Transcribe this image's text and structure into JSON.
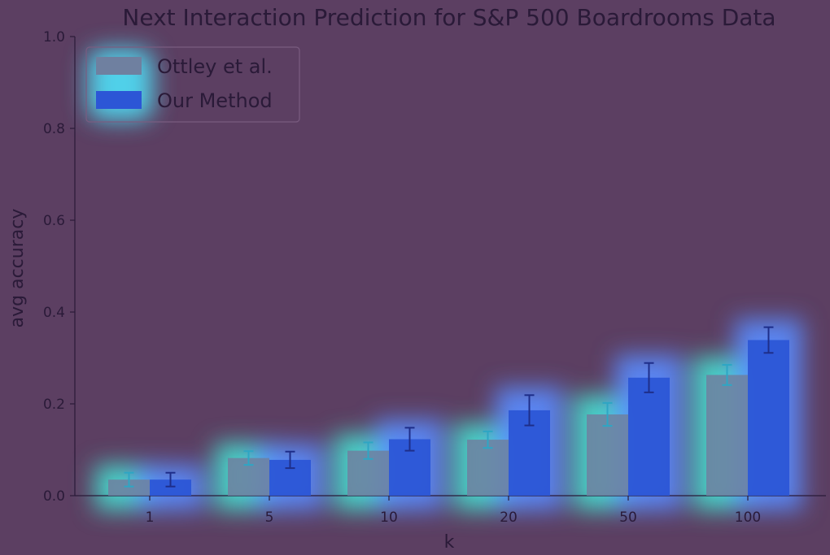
{
  "chart_data": {
    "type": "bar",
    "title": "Next Interaction Prediction for S&P 500 Boardrooms Data",
    "xlabel": "k",
    "ylabel": "avg accuracy",
    "categories": [
      "1",
      "5",
      "10",
      "20",
      "50",
      "100"
    ],
    "series": [
      {
        "name": "Ottley et al.",
        "values": [
          0.035,
          0.082,
          0.098,
          0.122,
          0.177,
          0.263
        ],
        "errors": [
          0.015,
          0.015,
          0.018,
          0.018,
          0.025,
          0.022
        ]
      },
      {
        "name": "Our Method",
        "values": [
          0.035,
          0.078,
          0.123,
          0.186,
          0.257,
          0.339
        ],
        "errors": [
          0.015,
          0.018,
          0.025,
          0.033,
          0.032,
          0.028
        ]
      }
    ],
    "ylim": [
      0,
      1.0
    ],
    "yticks": [
      "0.0",
      "0.2",
      "0.4",
      "0.6",
      "0.8",
      "1.0"
    ],
    "grid": false,
    "legend": "top-left",
    "colors": {
      "background": "#5c3f62",
      "ottley": "#6f80a0",
      "ottley_glow": "#46e0d2",
      "ours": "#2c56d6",
      "ours_glow": "#5a8cff",
      "text": "#2a1a38",
      "error_ottley": "#2ea6c4",
      "error_ours": "#1e2e8a"
    }
  }
}
